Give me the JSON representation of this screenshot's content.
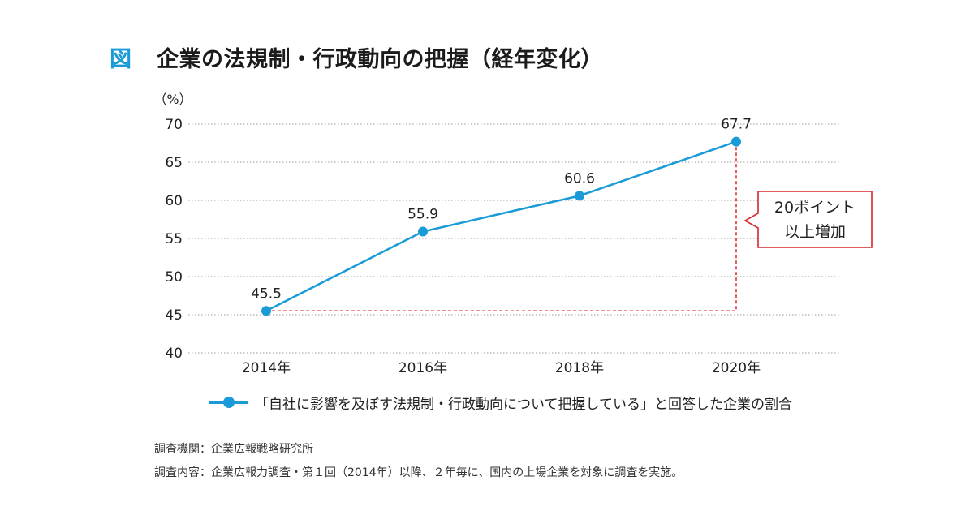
{
  "figure": {
    "label": "図",
    "title": "企業の法規制・行政動向の把握（経年変化）"
  },
  "colors": {
    "accent": "#1a9ad6",
    "highlight": "#d9262d",
    "grid": "#9a9a9a"
  },
  "chart_data": {
    "type": "line",
    "title": "企業の法規制・行政動向の把握（経年変化）",
    "ylabel": "（%）",
    "xlabel": "",
    "ylim": [
      40,
      70
    ],
    "yticks": [
      40,
      45,
      50,
      55,
      60,
      65,
      70
    ],
    "categories": [
      "2014年",
      "2016年",
      "2018年",
      "2020年"
    ],
    "series": [
      {
        "name": "「自社に影響を及ぼす法規制・行政動向について把握している」と回答した企業の割合",
        "values": [
          45.5,
          55.9,
          60.6,
          67.7
        ],
        "labels": [
          "45.5",
          "55.9",
          "60.6",
          "67.7"
        ]
      }
    ],
    "grid": true,
    "annotation": {
      "line1": "20ポイント",
      "line2": "以上増加"
    }
  },
  "legend": {
    "text": "「自社に影響を及ぼす法規制・行政動向について把握している」と回答した企業の割合"
  },
  "notes": {
    "line1": "調査機関：企業広報戦略研究所",
    "line2": "調査内容：企業広報力調査・第１回（2014年）以降、２年毎に、国内の上場企業を対象に調査を実施。"
  }
}
